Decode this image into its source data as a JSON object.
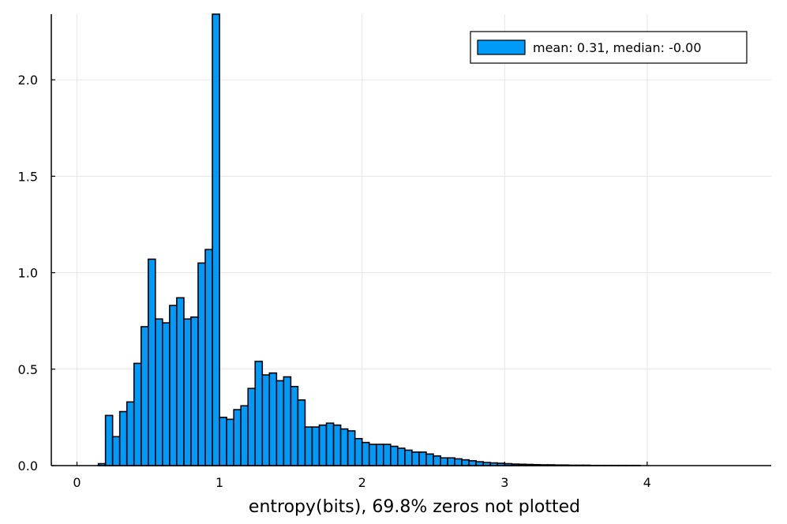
{
  "chart_data": {
    "type": "bar",
    "title": "",
    "xlabel": "entropy(bits), 69.8% zeros not plotted",
    "ylabel": "",
    "xlim": [
      -0.18,
      4.87
    ],
    "ylim": [
      0,
      2.34
    ],
    "grid": true,
    "legend_position": "top-right",
    "x_ticks": [
      0,
      1,
      2,
      3,
      4
    ],
    "x_tick_labels": [
      "0",
      "1",
      "2",
      "3",
      "4"
    ],
    "y_ticks": [
      0,
      0.5,
      1.0,
      1.5,
      2.0
    ],
    "y_tick_labels": [
      "0.0",
      "0.5",
      "1.0",
      "1.5",
      "2.0"
    ],
    "bin_width": 0.05,
    "bin_start": 0.0,
    "colors": {
      "bar": "#009af9",
      "edge": "#000000",
      "grid": "#e6e6e6"
    },
    "series": [
      {
        "name": "mean: 0.31, median: -0.00",
        "values": [
          0.0,
          0.0,
          0.0,
          0.01,
          0.26,
          0.15,
          0.28,
          0.33,
          0.53,
          0.72,
          1.07,
          0.76,
          0.74,
          0.83,
          0.87,
          0.76,
          0.77,
          1.05,
          1.12,
          2.34,
          0.25,
          0.24,
          0.29,
          0.31,
          0.4,
          0.54,
          0.47,
          0.48,
          0.44,
          0.46,
          0.41,
          0.34,
          0.2,
          0.2,
          0.21,
          0.22,
          0.21,
          0.19,
          0.18,
          0.14,
          0.12,
          0.11,
          0.11,
          0.11,
          0.1,
          0.09,
          0.08,
          0.07,
          0.07,
          0.06,
          0.05,
          0.04,
          0.04,
          0.035,
          0.03,
          0.025,
          0.02,
          0.016,
          0.014,
          0.012,
          0.01,
          0.008,
          0.007,
          0.006,
          0.005,
          0.004,
          0.004,
          0.003,
          0.003,
          0.002,
          0.002,
          0.002,
          0.001,
          0.001,
          0.001,
          0.001,
          0.001,
          0.001,
          0.001,
          0.0,
          0.0,
          0.0,
          0.0,
          0.0,
          0.0,
          0.0,
          0.0,
          0.0,
          0.0,
          0.0,
          0.0,
          0.0,
          0.0
        ]
      }
    ]
  }
}
